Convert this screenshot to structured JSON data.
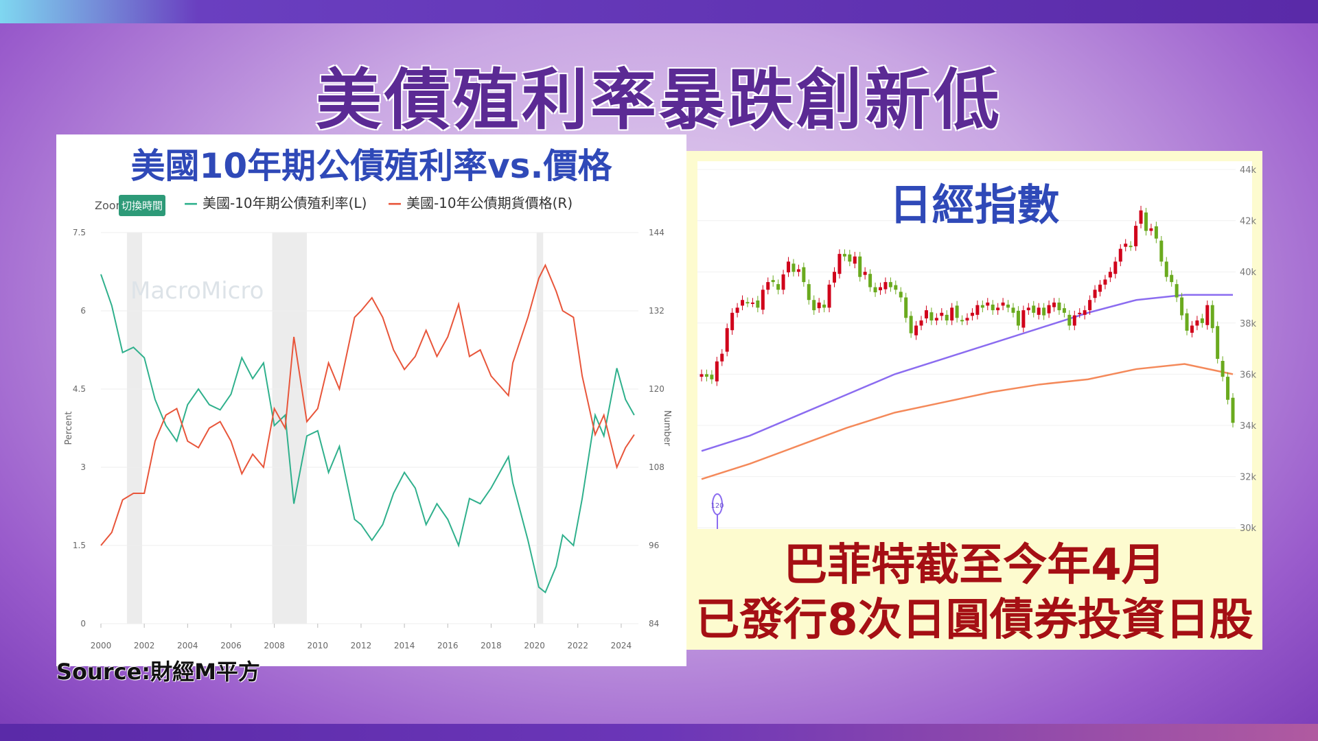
{
  "title": "美債殖利率暴跌創新低",
  "source": "Source:財經M平方",
  "left_chart": {
    "subtitle": "美國10年期公債殖利率vs.價格",
    "zoom_label": "Zoom",
    "zoom_button": "切換時間",
    "watermark": "MacroMicro",
    "colors": {
      "yield": "#2fb08c",
      "price": "#e8553a",
      "recession": "#ececec"
    }
  },
  "right_chart": {
    "title": "日經指數",
    "ma_marker": "120",
    "caption_line1": "巴菲特截至今年4月",
    "caption_line2": "已發行8次日圓債券投資日股",
    "colors": {
      "up": "#d0021b",
      "down": "#6aaa1e",
      "ma120": "#8b6cf0",
      "ma240": "#f4895a"
    }
  },
  "chart_data": [
    {
      "type": "line",
      "title": "美國10年期公債殖利率vs.價格",
      "ylabel": "Percent",
      "y2label": "Number",
      "ylim": [
        0,
        7.5
      ],
      "y2lim": [
        84,
        144
      ],
      "xticks": [
        "2000",
        "2002",
        "2004",
        "2006",
        "2008",
        "2010",
        "2012",
        "2014",
        "2016",
        "2018",
        "2020",
        "2022",
        "2024"
      ],
      "yticks": [
        "0",
        "1.5",
        "3",
        "4.5",
        "6",
        "7.5"
      ],
      "y2ticks": [
        "84",
        "96",
        "108",
        "120",
        "132",
        "144"
      ],
      "recessions": [
        [
          2001.2,
          2001.9
        ],
        [
          2007.9,
          2009.5
        ],
        [
          2020.1,
          2020.4
        ]
      ],
      "x": [
        2000,
        2000.5,
        2001,
        2001.5,
        2002,
        2002.5,
        2003,
        2003.5,
        2004,
        2004.5,
        2005,
        2005.5,
        2006,
        2006.5,
        2007,
        2007.5,
        2008,
        2008.5,
        2008.9,
        2009.5,
        2010,
        2010.5,
        2011,
        2011.7,
        2012,
        2012.5,
        2013,
        2013.5,
        2014,
        2014.5,
        2015,
        2015.5,
        2016,
        2016.5,
        2017,
        2017.5,
        2018,
        2018.8,
        2019,
        2019.7,
        2020.2,
        2020.5,
        2021,
        2021.3,
        2021.8,
        2022.2,
        2022.8,
        2023.2,
        2023.8,
        2024.2,
        2024.6
      ],
      "series": [
        {
          "name": "美國-10年期公債殖利率(L)",
          "axis": "left",
          "values": [
            6.7,
            6.1,
            5.2,
            5.3,
            5.1,
            4.3,
            3.8,
            3.5,
            4.2,
            4.5,
            4.2,
            4.1,
            4.4,
            5.1,
            4.7,
            5.0,
            3.8,
            4.0,
            2.3,
            3.6,
            3.7,
            2.9,
            3.4,
            2.0,
            1.9,
            1.6,
            1.9,
            2.5,
            2.9,
            2.6,
            1.9,
            2.3,
            2.0,
            1.5,
            2.4,
            2.3,
            2.6,
            3.2,
            2.7,
            1.6,
            0.7,
            0.6,
            1.1,
            1.7,
            1.5,
            2.4,
            4.0,
            3.6,
            4.9,
            4.3,
            4.0
          ]
        },
        {
          "name": "美國-10年公債期貨價格(R)",
          "axis": "right",
          "values": [
            96,
            98,
            103,
            104,
            104,
            112,
            116,
            117,
            112,
            111,
            114,
            115,
            112,
            107,
            110,
            108,
            117,
            114,
            128,
            115,
            117,
            124,
            120,
            131,
            132,
            134,
            131,
            126,
            123,
            125,
            129,
            125,
            128,
            133,
            125,
            126,
            122,
            119,
            124,
            131,
            137,
            139,
            135,
            132,
            131,
            122,
            113,
            116,
            108,
            111,
            113
          ]
        }
      ],
      "legend": "top-left",
      "grid": true
    },
    {
      "type": "candlestick",
      "title": "日經指數",
      "ylim": [
        30000,
        44000
      ],
      "yticks": [
        "30k",
        "32k",
        "34k",
        "36k",
        "38k",
        "40k",
        "42k",
        "44k"
      ],
      "closes": [
        36.0,
        35.9,
        35.8,
        36.5,
        36.8,
        37.8,
        38.4,
        38.6,
        38.9,
        38.8,
        38.8,
        38.6,
        39.3,
        39.6,
        39.6,
        39.3,
        39.9,
        40.4,
        40.0,
        40.1,
        39.6,
        38.9,
        38.5,
        38.8,
        38.6,
        39.5,
        40.0,
        40.7,
        40.6,
        40.4,
        40.6,
        39.8,
        40.0,
        39.4,
        39.2,
        39.4,
        39.6,
        39.4,
        39.3,
        39.0,
        38.2,
        37.6,
        37.9,
        38.1,
        38.5,
        38.1,
        38.2,
        38.4,
        38.1,
        38.6,
        38.2,
        38.1,
        38.2,
        38.4,
        38.7,
        38.6,
        38.8,
        38.5,
        38.6,
        38.8,
        38.6,
        38.4,
        37.9,
        38.5,
        38.6,
        38.4,
        38.6,
        38.3,
        38.7,
        38.8,
        38.5,
        38.4,
        37.9,
        38.3,
        38.4,
        38.5,
        38.9,
        39.3,
        39.5,
        39.7,
        40.0,
        40.4,
        40.9,
        41.1,
        41.0,
        41.8,
        42.4,
        41.6,
        41.7,
        41.3,
        40.4,
        39.8,
        39.6,
        39.0,
        38.3,
        37.7,
        37.9,
        38.1,
        38.0,
        38.7,
        37.8,
        36.6,
        35.9,
        35.0,
        34.1
      ],
      "close_unit": "k",
      "ma120": [
        33.0,
        33.6,
        34.4,
        35.2,
        36.0,
        36.6,
        37.2,
        37.8,
        38.4,
        38.9,
        39.1,
        39.1
      ],
      "ma240": [
        31.9,
        32.5,
        33.2,
        33.9,
        34.5,
        34.9,
        35.3,
        35.6,
        35.8,
        36.2,
        36.4,
        36.0
      ],
      "grid": true
    }
  ]
}
